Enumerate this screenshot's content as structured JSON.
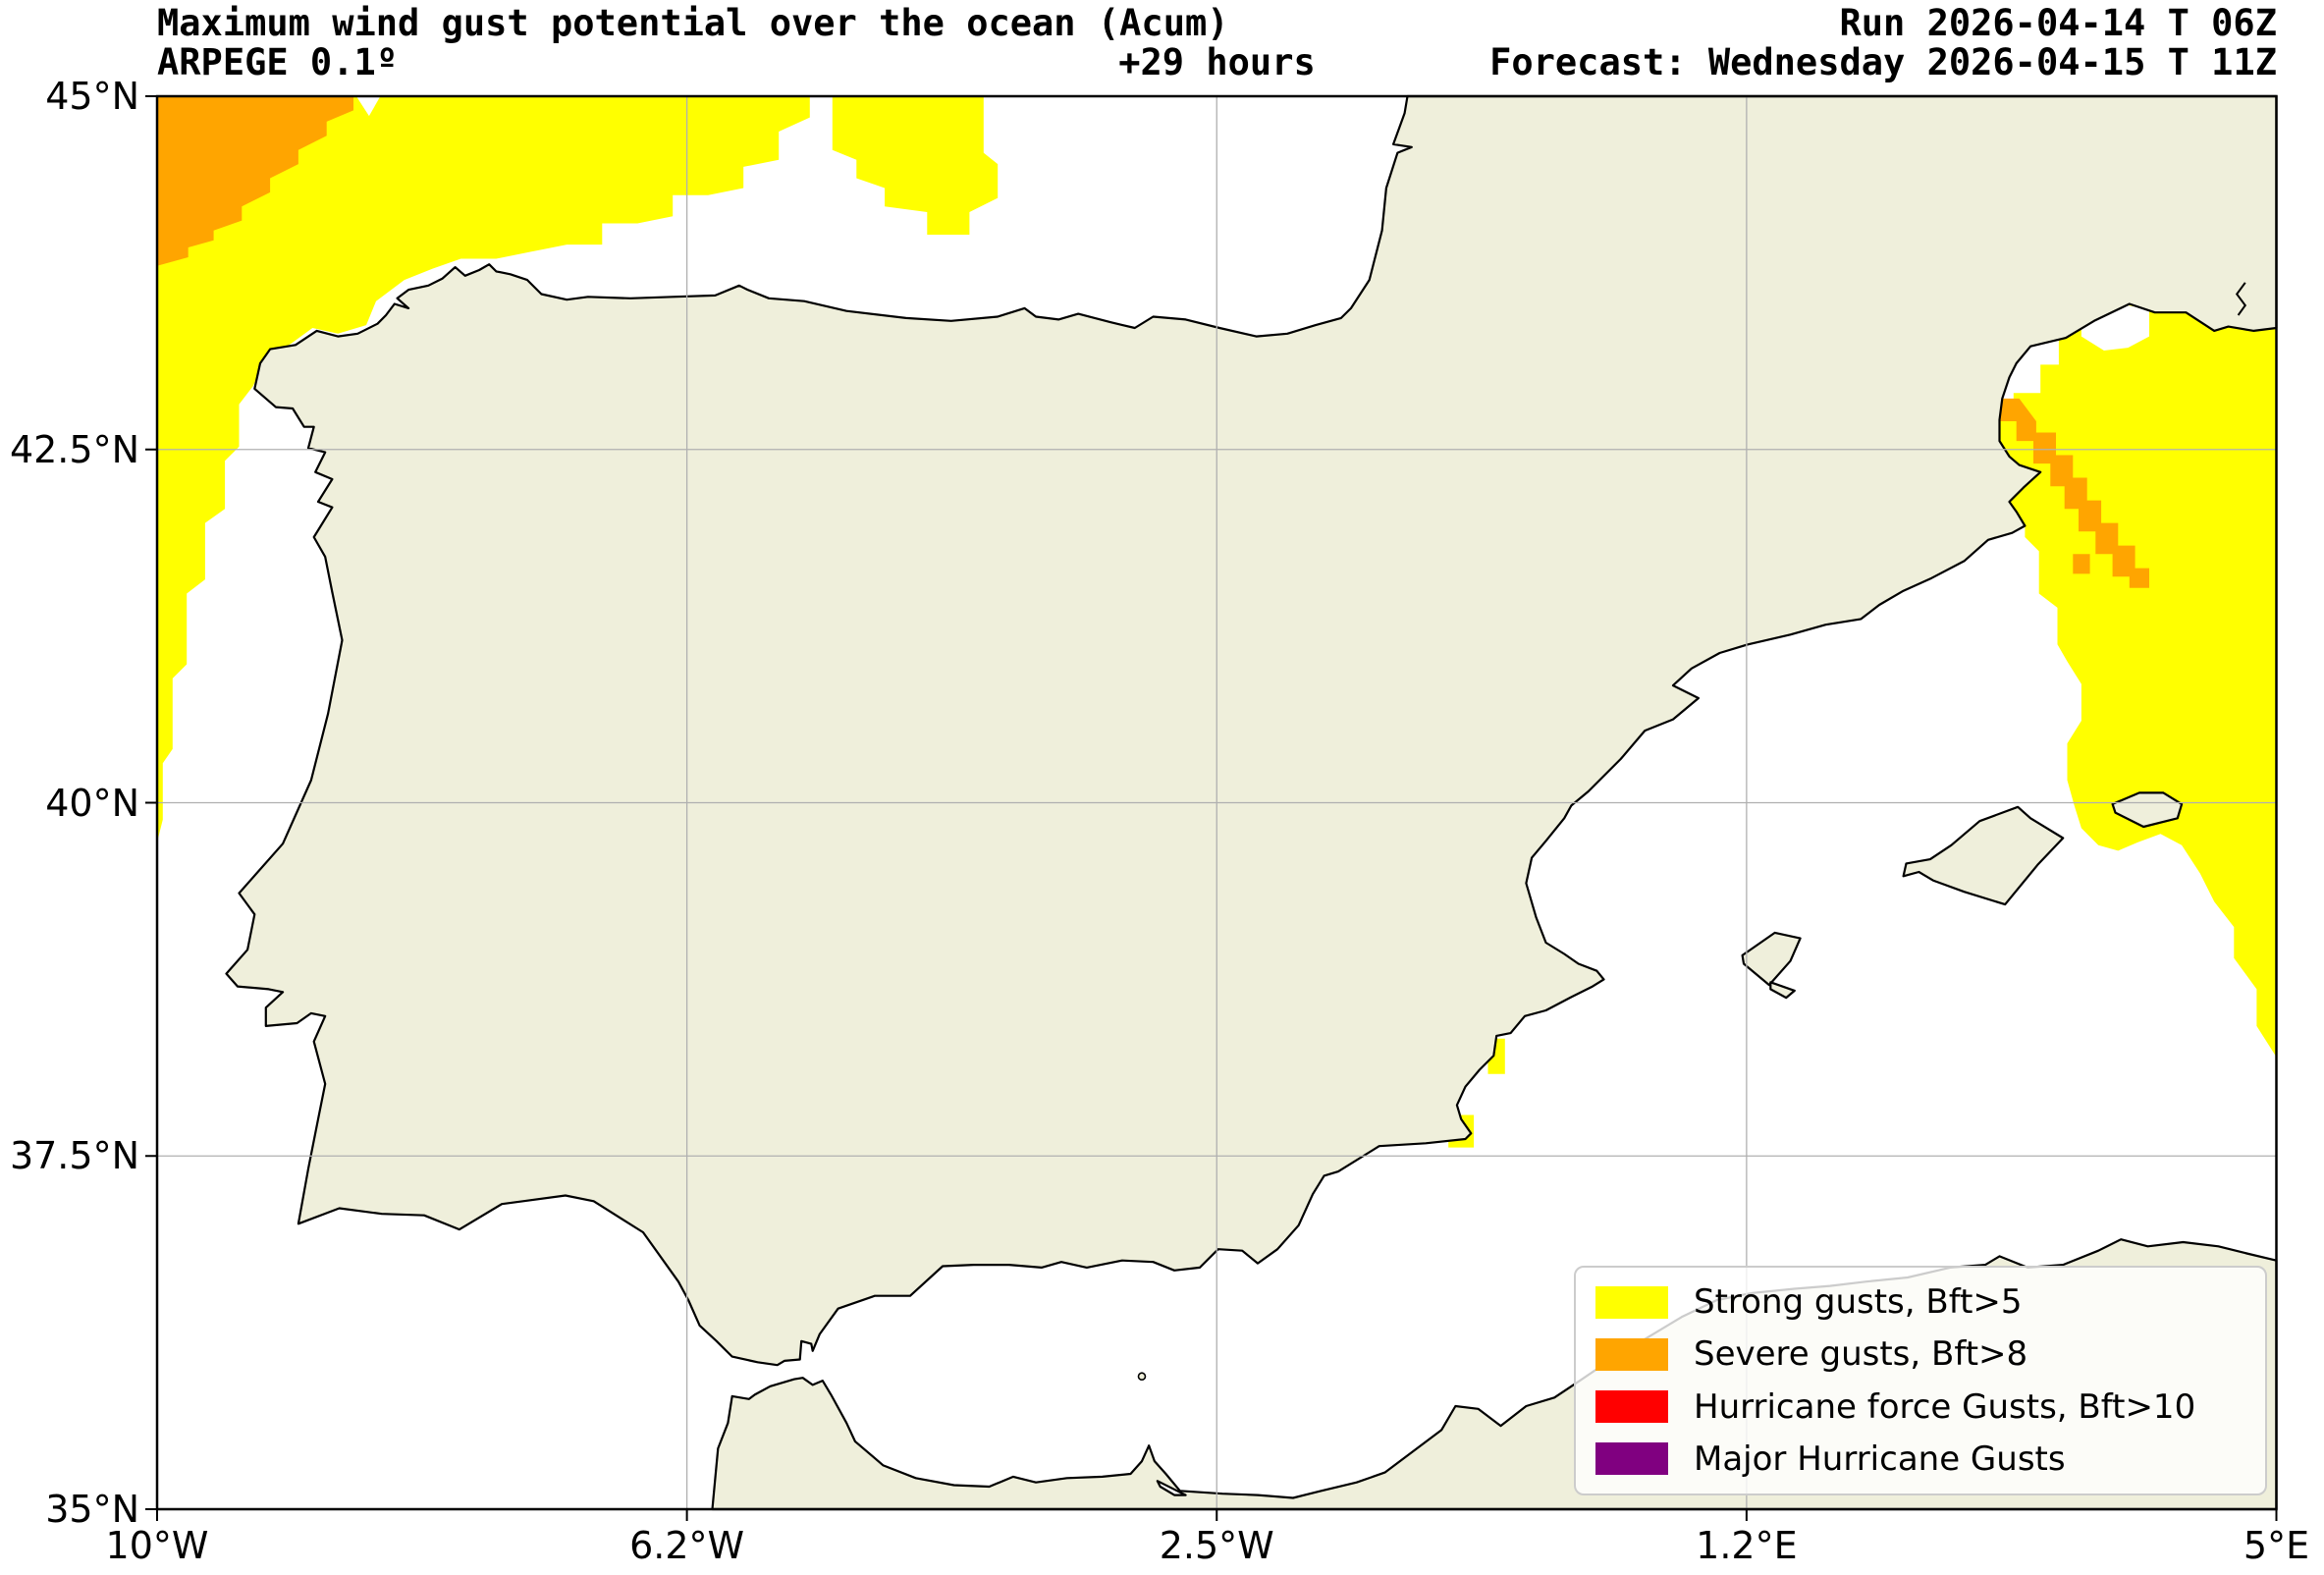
{
  "header": {
    "title": "Maximum wind gust potential over the ocean (Acum)",
    "model": "ARPEGE 0.1º",
    "lead_time": "+29 hours",
    "run": "Run 2026-04-14 T 06Z",
    "forecast": "Forecast: Wednesday 2026-04-15 T 11Z"
  },
  "axes": {
    "x_ticks": [
      {
        "label": "10°W",
        "lon": -10
      },
      {
        "label": "6.2°W",
        "lon": -6.25
      },
      {
        "label": "2.5°W",
        "lon": -2.5
      },
      {
        "label": "1.2°E",
        "lon": 1.25
      },
      {
        "label": "5°E",
        "lon": 5
      }
    ],
    "y_ticks": [
      {
        "label": "45°N",
        "lat": 45
      },
      {
        "label": "42.5°N",
        "lat": 42.5
      },
      {
        "label": "40°N",
        "lat": 40
      },
      {
        "label": "37.5°N",
        "lat": 37.5
      },
      {
        "label": "35°N",
        "lat": 35
      }
    ],
    "extent": {
      "lon_min": -10,
      "lon_max": 5,
      "lat_min": 35,
      "lat_max": 45
    }
  },
  "legend": {
    "items": [
      {
        "label": "Strong gusts, Bft>5",
        "color": "#FFFF00"
      },
      {
        "label": "Severe gusts, Bft>8",
        "color": "#FFA500"
      },
      {
        "label": "Hurricane force Gusts, Bft>10",
        "color": "#FF0000"
      },
      {
        "label": "Major Hurricane Gusts",
        "color": "#800080"
      }
    ]
  },
  "map": {
    "colors": {
      "ocean": "#FFFFFF",
      "land": "#EFEFDB",
      "coast": "#000000",
      "grid": "#B0B0B0",
      "strong": "#FFFF00",
      "severe": "#FFA500",
      "hurricane": "#FF0000",
      "major": "#800080"
    },
    "layers": [
      {
        "name": "gust-strong-atlantic",
        "fill": "#FFFF00",
        "points": [
          -10,
          45,
          -5.38,
          45,
          -5.38,
          44.85,
          -5.6,
          44.75,
          -5.6,
          44.55,
          -5.85,
          44.5,
          -5.85,
          44.35,
          -6.1,
          44.3,
          -6.35,
          44.3,
          -6.35,
          44.15,
          -6.6,
          44.1,
          -6.85,
          44.1,
          -6.85,
          43.95,
          -7.1,
          43.95,
          -7.35,
          43.9,
          -7.6,
          43.85,
          -7.85,
          43.85,
          -8.05,
          43.78,
          -8.25,
          43.7,
          -8.45,
          43.55,
          -8.52,
          43.38,
          -8.72,
          43.32,
          -8.9,
          43.36,
          -9.05,
          43.25,
          -9.24,
          43.14,
          -9.32,
          42.95,
          -9.42,
          42.82,
          -9.42,
          42.52,
          -9.52,
          42.42,
          -9.52,
          42.08,
          -9.66,
          41.98,
          -9.66,
          41.58,
          -9.79,
          41.48,
          -9.79,
          40.98,
          -9.89,
          40.88,
          -9.89,
          40.38,
          -9.96,
          40.28,
          -9.96,
          39.88,
          -10,
          39.72
        ]
      },
      {
        "name": "gust-strong-atlantic-east-lobe",
        "fill": "#FFFF00",
        "points": [
          -5.22,
          45,
          -4.15,
          45,
          -4.15,
          44.6,
          -4.05,
          44.52,
          -4.05,
          44.28,
          -4.25,
          44.18,
          -4.25,
          44.02,
          -4.55,
          44.02,
          -4.55,
          44.18,
          -4.85,
          44.22,
          -4.85,
          44.35,
          -5.05,
          44.42,
          -5.05,
          44.55,
          -5.22,
          44.62
        ]
      },
      {
        "name": "gust-severe-atlantic",
        "fill": "#FFA500",
        "points": [
          -10,
          45,
          -8.61,
          45,
          -8.61,
          44.9,
          -8.8,
          44.82,
          -8.8,
          44.72,
          -9,
          44.62,
          -9,
          44.52,
          -9.2,
          44.42,
          -9.2,
          44.32,
          -9.4,
          44.22,
          -9.4,
          44.12,
          -9.6,
          44.05,
          -9.6,
          43.98,
          -9.78,
          43.93,
          -9.78,
          43.86,
          -10,
          43.8
        ]
      },
      {
        "name": "ocean-notch-atlantic",
        "fill": "#FFFFFF",
        "points": [
          -8.59,
          45,
          -8.42,
          45,
          -8.5,
          44.86
        ]
      },
      {
        "name": "gust-strong-mediterranean",
        "fill": "#FFFF00",
        "points": [
          3.56,
          43.42,
          3.71,
          43.41,
          3.96,
          43.53,
          4.14,
          43.47,
          4.36,
          43.47,
          4.56,
          43.34,
          4.66,
          43.37,
          4.84,
          43.34,
          5,
          43.36,
          5,
          38.2,
          4.86,
          38.42,
          4.86,
          38.68,
          4.7,
          38.9,
          4.7,
          39.12,
          4.56,
          39.3,
          4.46,
          39.5,
          4.33,
          39.7,
          4.18,
          39.78,
          4.02,
          39.72,
          3.88,
          39.66,
          3.74,
          39.7,
          3.62,
          39.82,
          3.57,
          39.98,
          3.52,
          40.16,
          3.52,
          40.42,
          3.62,
          40.58,
          3.62,
          40.84,
          3.52,
          41,
          3.45,
          41.12,
          3.45,
          41.38,
          3.32,
          41.48,
          3.32,
          41.78,
          3.22,
          41.88,
          3.22,
          41.96,
          3.16,
          42.06,
          3.11,
          42.13,
          3.21,
          42.23,
          3.33,
          42.34,
          3.18,
          42.39,
          3.11,
          42.45,
          3.04,
          42.56,
          3.04,
          42.71,
          3.14,
          42.71,
          3.14,
          42.9,
          3.33,
          42.9,
          3.33,
          43.1,
          3.46,
          43.1,
          3.46,
          43.29
        ]
      },
      {
        "name": "ocean-notch-mediterranean",
        "fill": "#FFFFFF",
        "points": [
          3.62,
          43.42,
          3.75,
          43.44,
          3.95,
          43.52,
          4.1,
          43.49,
          4.1,
          43.3,
          3.95,
          43.22,
          3.78,
          43.2,
          3.62,
          43.3
        ]
      },
      {
        "name": "gust-severe-mediterranean",
        "fill": "#FFA500",
        "points": [
          3.02,
          42.86,
          3.18,
          42.86,
          3.3,
          42.7,
          3.3,
          42.62,
          3.44,
          42.62,
          3.44,
          42.46,
          3.56,
          42.46,
          3.56,
          42.3,
          3.66,
          42.3,
          3.66,
          42.14,
          3.76,
          42.14,
          3.76,
          41.98,
          3.88,
          41.98,
          3.88,
          41.82,
          4,
          41.82,
          4,
          41.66,
          4.1,
          41.66,
          4.1,
          41.52,
          3.96,
          41.52,
          3.96,
          41.6,
          3.84,
          41.6,
          3.84,
          41.76,
          3.72,
          41.76,
          3.72,
          41.92,
          3.6,
          41.92,
          3.6,
          42.08,
          3.5,
          42.08,
          3.5,
          42.24,
          3.4,
          42.24,
          3.4,
          42.4,
          3.28,
          42.4,
          3.28,
          42.56,
          3.16,
          42.56,
          3.16,
          42.7,
          3.02,
          42.7
        ]
      },
      {
        "name": "gust-severe-spot",
        "fill": "#FFA500",
        "points": [
          3.56,
          41.76,
          3.68,
          41.76,
          3.68,
          41.62,
          3.56,
          41.62
        ]
      },
      {
        "name": "gust-strong-alicante-a",
        "fill": "#FFFF00",
        "points": [
          -0.58,
          38.33,
          -0.46,
          38.33,
          -0.46,
          38.08,
          -0.58,
          38.08
        ]
      },
      {
        "name": "gust-strong-alicante-b",
        "fill": "#FFFF00",
        "points": [
          -0.86,
          37.79,
          -0.68,
          37.79,
          -0.68,
          37.56,
          -0.86,
          37.56
        ]
      },
      {
        "name": "land-mainland",
        "fill": "#EFEFDB",
        "stroke": "#000000",
        "points": [
          -1.15,
          45,
          -1.17,
          44.88,
          -1.25,
          44.66,
          -1.12,
          44.64,
          -1.22,
          44.6,
          -1.3,
          44.35,
          -1.33,
          44.05,
          -1.42,
          43.7,
          -1.55,
          43.5,
          -1.62,
          43.43,
          -1.8,
          43.38,
          -2,
          43.32,
          -2.22,
          43.3,
          -2.48,
          43.36,
          -2.72,
          43.42,
          -2.95,
          43.44,
          -3.08,
          43.36,
          -3.25,
          43.4,
          -3.48,
          43.46,
          -3.62,
          43.42,
          -3.78,
          43.44,
          -3.86,
          43.5,
          -4.05,
          43.44,
          -4.38,
          43.41,
          -4.7,
          43.43,
          -5.12,
          43.48,
          -5.42,
          43.55,
          -5.67,
          43.57,
          -5.82,
          43.63,
          -5.88,
          43.66,
          -6.05,
          43.59,
          -6.35,
          43.58,
          -6.65,
          43.57,
          -6.95,
          43.58,
          -7.1,
          43.56,
          -7.28,
          43.6,
          -7.38,
          43.7,
          -7.5,
          43.74,
          -7.6,
          43.76,
          -7.65,
          43.81,
          -7.72,
          43.77,
          -7.82,
          43.73,
          -7.89,
          43.79,
          -7.98,
          43.71,
          -8.08,
          43.66,
          -8.22,
          43.63,
          -8.3,
          43.57,
          -8.22,
          43.5,
          -8.32,
          43.53,
          -8.38,
          43.45,
          -8.44,
          43.39,
          -8.58,
          43.32,
          -8.72,
          43.3,
          -8.87,
          43.34,
          -9.02,
          43.24,
          -9.2,
          43.21,
          -9.27,
          43.11,
          -9.31,
          42.93,
          -9.16,
          42.8,
          -9.04,
          42.79,
          -8.96,
          42.66,
          -8.89,
          42.66,
          -8.93,
          42.51,
          -8.81,
          42.48,
          -8.88,
          42.34,
          -8.76,
          42.29,
          -8.86,
          42.13,
          -8.76,
          42.09,
          -8.89,
          41.88,
          -8.81,
          41.74,
          -8.76,
          41.49,
          -8.69,
          41.15,
          -8.79,
          40.63,
          -8.91,
          40.16,
          -9.11,
          39.71,
          -9.42,
          39.36,
          -9.31,
          39.21,
          -9.36,
          38.96,
          -9.51,
          38.79,
          -9.43,
          38.7,
          -9.21,
          38.68,
          -9.11,
          38.66,
          -9.23,
          38.55,
          -9.23,
          38.42,
          -9.01,
          38.44,
          -8.91,
          38.51,
          -8.81,
          38.49,
          -8.89,
          38.31,
          -8.81,
          38.01,
          -8.86,
          37.76,
          -8.93,
          37.41,
          -9,
          37.02,
          -8.71,
          37.13,
          -8.41,
          37.09,
          -8.11,
          37.08,
          -7.86,
          36.98,
          -7.56,
          37.16,
          -7.41,
          37.18,
          -7.11,
          37.22,
          -6.91,
          37.18,
          -6.56,
          36.96,
          -6.31,
          36.61,
          -6.24,
          36.48,
          -6.16,
          36.3,
          -6.04,
          36.19,
          -5.93,
          36.08,
          -5.75,
          36.04,
          -5.61,
          36.02,
          -5.56,
          36.05,
          -5.45,
          36.06,
          -5.44,
          36.19,
          -5.37,
          36.17,
          -5.36,
          36.12,
          -5.31,
          36.24,
          -5.18,
          36.42,
          -4.92,
          36.51,
          -4.67,
          36.51,
          -4.44,
          36.72,
          -4.22,
          36.73,
          -3.97,
          36.73,
          -3.74,
          36.71,
          -3.6,
          36.75,
          -3.42,
          36.71,
          -3.17,
          36.76,
          -2.95,
          36.75,
          -2.8,
          36.69,
          -2.62,
          36.71,
          -2.49,
          36.84,
          -2.32,
          36.83,
          -2.21,
          36.74,
          -2.07,
          36.84,
          -1.92,
          37.01,
          -1.82,
          37.23,
          -1.74,
          37.36,
          -1.64,
          37.39,
          -1.35,
          37.57,
          -1.02,
          37.59,
          -0.74,
          37.62,
          -0.7,
          37.66,
          -0.77,
          37.76,
          -0.8,
          37.86,
          -0.74,
          37.99,
          -0.64,
          38.11,
          -0.54,
          38.21,
          -0.52,
          38.35,
          -0.42,
          38.37,
          -0.32,
          38.49,
          -0.17,
          38.53,
          0,
          38.62,
          0.16,
          38.7,
          0.24,
          38.75,
          0.19,
          38.81,
          0.06,
          38.86,
          -0.04,
          38.93,
          -0.17,
          39.01,
          -0.24,
          39.19,
          -0.31,
          39.43,
          -0.27,
          39.61,
          -0.17,
          39.73,
          -0.04,
          39.89,
          0.01,
          39.98,
          0.13,
          40.08,
          0.36,
          40.31,
          0.53,
          40.51,
          0.73,
          40.59,
          0.91,
          40.74,
          0.73,
          40.83,
          0.86,
          40.95,
          1.06,
          41.06,
          1.26,
          41.12,
          1.56,
          41.19,
          1.81,
          41.26,
          2.06,
          41.3,
          2.19,
          41.4,
          2.36,
          41.5,
          2.56,
          41.59,
          2.79,
          41.71,
          2.96,
          41.86,
          3.13,
          41.91,
          3.22,
          41.96,
          3.16,
          42.06,
          3.11,
          42.13,
          3.21,
          42.23,
          3.33,
          42.34,
          3.18,
          42.39,
          3.11,
          42.45,
          3.04,
          42.56,
          3.04,
          42.71,
          3.06,
          42.86,
          3.11,
          43.01,
          3.16,
          43.11,
          3.26,
          43.23,
          3.51,
          43.29,
          3.71,
          43.41,
          3.96,
          43.53,
          4.14,
          43.47,
          4.36,
          43.47,
          4.56,
          43.34,
          4.66,
          43.37,
          4.84,
          43.34,
          5,
          43.36,
          5,
          45
        ]
      },
      {
        "name": "land-africa",
        "fill": "#EFEFDB",
        "stroke": "#000000",
        "points": [
          -6.07,
          35,
          -6.03,
          35.43,
          -5.96,
          35.61,
          -5.93,
          35.8,
          -5.81,
          35.78,
          -5.77,
          35.81,
          -5.66,
          35.87,
          -5.49,
          35.92,
          -5.43,
          35.93,
          -5.36,
          35.88,
          -5.29,
          35.91,
          -5.23,
          35.81,
          -5.12,
          35.61,
          -5.06,
          35.48,
          -4.86,
          35.31,
          -4.63,
          35.22,
          -4.36,
          35.17,
          -4.11,
          35.16,
          -3.94,
          35.23,
          -3.78,
          35.19,
          -3.56,
          35.22,
          -3.31,
          35.23,
          -3.11,
          35.25,
          -3.03,
          35.34,
          -2.98,
          35.45,
          -2.94,
          35.34,
          -2.86,
          35.25,
          -2.76,
          35.13,
          -2.46,
          35.11,
          -2.21,
          35.1,
          -1.96,
          35.08,
          -1.76,
          35.13,
          -1.51,
          35.19,
          -1.31,
          35.26,
          -1.11,
          35.41,
          -0.91,
          35.56,
          -0.81,
          35.73,
          -0.65,
          35.71,
          -0.49,
          35.59,
          -0.31,
          35.73,
          -0.11,
          35.79,
          0.07,
          35.91,
          0.29,
          36.06,
          0.54,
          36.21,
          0.79,
          36.36,
          1.04,
          36.48,
          1.29,
          36.53,
          1.59,
          36.56,
          1.84,
          36.58,
          2.09,
          36.61,
          2.39,
          36.64,
          2.69,
          36.71,
          2.94,
          36.73,
          3.04,
          36.79,
          3.24,
          36.71,
          3.49,
          36.73,
          3.74,
          36.83,
          3.9,
          36.91,
          4.09,
          36.86,
          4.34,
          36.89,
          4.59,
          36.86,
          4.79,
          36.81,
          5,
          36.76,
          5,
          35
        ]
      },
      {
        "name": "island-mallorca",
        "fill": "#EFEFDB",
        "stroke": "#000000",
        "points": [
          2.38,
          39.57,
          2.55,
          39.6,
          2.7,
          39.7,
          2.9,
          39.87,
          3.17,
          39.97,
          3.26,
          39.89,
          3.49,
          39.75,
          3.31,
          39.56,
          3.08,
          39.28,
          2.79,
          39.37,
          2.57,
          39.45,
          2.47,
          39.51,
          2.36,
          39.48
        ]
      },
      {
        "name": "island-menorca",
        "fill": "#EFEFDB",
        "stroke": "#000000",
        "points": [
          3.84,
          39.99,
          4.03,
          40.07,
          4.2,
          40.07,
          4.33,
          39.99,
          4.3,
          39.89,
          4.06,
          39.83,
          3.86,
          39.93
        ]
      },
      {
        "name": "island-ibiza",
        "fill": "#EFEFDB",
        "stroke": "#000000",
        "points": [
          1.22,
          38.92,
          1.45,
          39.08,
          1.63,
          39.04,
          1.56,
          38.88,
          1.41,
          38.71,
          1.23,
          38.86
        ]
      },
      {
        "name": "island-formentera",
        "fill": "#EFEFDB",
        "stroke": "#000000",
        "points": [
          1.42,
          38.73,
          1.59,
          38.67,
          1.53,
          38.62,
          1.42,
          38.68
        ]
      },
      {
        "name": "lagoon-mar-chica",
        "fill": "#FFFFFF",
        "stroke": "#000000",
        "points": [
          -2.92,
          35.2,
          -2.78,
          35.13,
          -2.72,
          35.1,
          -2.8,
          35.1,
          -2.9,
          35.16
        ]
      }
    ],
    "islet_alboran": {
      "lon": -3.03,
      "lat": 35.94
    },
    "river_rhone": [
      4.78,
      43.68,
      4.72,
      43.6,
      4.78,
      43.52,
      4.73,
      43.45
    ]
  }
}
